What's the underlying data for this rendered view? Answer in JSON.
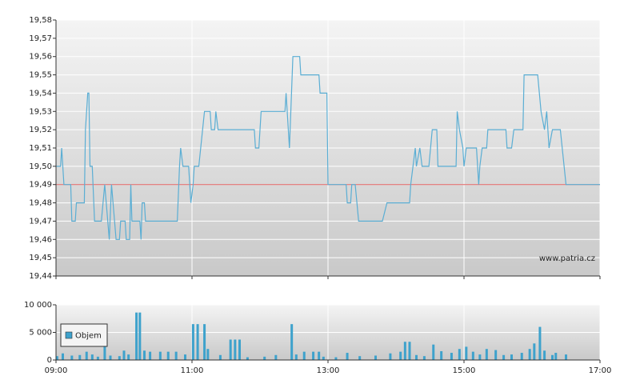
{
  "chart_data": [
    {
      "type": "line",
      "color": "#5aaed4",
      "reference_line": 19.49,
      "reference_color": "#e06060",
      "annotation": "www.patria.cz",
      "grid": true,
      "xlim": [
        540,
        1020
      ],
      "xticks": [
        540,
        660,
        780,
        900,
        1020
      ],
      "ylim": [
        19.44,
        19.58
      ],
      "yticks": [
        {
          "value": 19.44,
          "label": "19,44"
        },
        {
          "value": 19.45,
          "label": "19,45"
        },
        {
          "value": 19.46,
          "label": "19,46"
        },
        {
          "value": 19.47,
          "label": "19,47"
        },
        {
          "value": 19.48,
          "label": "19,48"
        },
        {
          "value": 19.49,
          "label": "19,49"
        },
        {
          "value": 19.5,
          "label": "19,50"
        },
        {
          "value": 19.51,
          "label": "19,51"
        },
        {
          "value": 19.52,
          "label": "19,52"
        },
        {
          "value": 19.53,
          "label": "19,53"
        },
        {
          "value": 19.54,
          "label": "19,54"
        },
        {
          "value": 19.55,
          "label": "19,55"
        },
        {
          "value": 19.56,
          "label": "19,56"
        },
        {
          "value": 19.57,
          "label": "19,57"
        },
        {
          "value": 19.58,
          "label": "19,58"
        }
      ],
      "x": [
        540,
        544,
        545,
        547,
        553,
        554,
        557,
        558,
        565,
        566,
        568,
        569,
        570,
        572,
        574,
        580,
        583,
        587,
        589,
        593,
        596,
        597,
        601,
        602,
        605,
        606,
        607,
        614,
        615,
        616,
        618,
        619,
        647,
        649,
        650,
        652,
        657,
        659,
        661,
        662,
        666,
        671,
        676,
        677,
        680,
        681,
        683,
        715,
        716,
        719,
        721,
        742,
        743,
        746,
        749,
        755,
        756,
        772,
        773,
        779,
        780,
        796,
        797,
        800,
        801,
        804,
        807,
        828,
        832,
        852,
        853,
        857,
        858,
        861,
        863,
        869,
        872,
        876,
        877,
        893,
        894,
        896,
        899,
        900,
        902,
        911,
        913,
        914,
        916,
        920,
        921,
        937,
        938,
        942,
        944,
        952,
        953,
        965,
        968,
        971,
        973,
        975,
        978,
        985,
        990,
        1020
      ],
      "values": [
        19.5,
        19.5,
        19.51,
        19.49,
        19.49,
        19.47,
        19.47,
        19.48,
        19.48,
        19.52,
        19.54,
        19.54,
        19.5,
        19.5,
        19.47,
        19.47,
        19.49,
        19.46,
        19.49,
        19.46,
        19.46,
        19.47,
        19.47,
        19.46,
        19.46,
        19.49,
        19.47,
        19.47,
        19.46,
        19.48,
        19.48,
        19.47,
        19.47,
        19.5,
        19.51,
        19.5,
        19.5,
        19.48,
        19.49,
        19.5,
        19.5,
        19.53,
        19.53,
        19.52,
        19.52,
        19.53,
        19.52,
        19.52,
        19.51,
        19.51,
        19.53,
        19.53,
        19.54,
        19.51,
        19.56,
        19.56,
        19.55,
        19.55,
        19.54,
        19.54,
        19.49,
        19.49,
        19.48,
        19.48,
        19.49,
        19.49,
        19.47,
        19.47,
        19.48,
        19.48,
        19.49,
        19.51,
        19.5,
        19.51,
        19.5,
        19.5,
        19.52,
        19.52,
        19.5,
        19.5,
        19.53,
        19.52,
        19.51,
        19.5,
        19.51,
        19.51,
        19.49,
        19.5,
        19.51,
        19.51,
        19.52,
        19.52,
        19.51,
        19.51,
        19.52,
        19.52,
        19.55,
        19.55,
        19.53,
        19.52,
        19.53,
        19.51,
        19.52,
        19.52,
        19.49,
        19.49
      ]
    },
    {
      "type": "bar",
      "grid": true,
      "xlim": [
        540,
        1020
      ],
      "xticks": [
        {
          "value": 540,
          "label": "09:00"
        },
        {
          "value": 660,
          "label": "11:00"
        },
        {
          "value": 780,
          "label": "13:00"
        },
        {
          "value": 900,
          "label": "15:00"
        },
        {
          "value": 1020,
          "label": "17:00"
        }
      ],
      "ylim": [
        0,
        10000
      ],
      "yticks": [
        0,
        {
          "value": 5000,
          "label": "5 000"
        },
        {
          "value": 10000,
          "label": "10 000"
        }
      ],
      "legend": "lower-left",
      "x": [
        541,
        546,
        554,
        561,
        567,
        572,
        577,
        583,
        588,
        596,
        600,
        604,
        611,
        614,
        618,
        623,
        632,
        639,
        646,
        654,
        661,
        665,
        671,
        674,
        685,
        694,
        698,
        702,
        709,
        724,
        734,
        748,
        752,
        759,
        767,
        772,
        776,
        787,
        797,
        808,
        822,
        835,
        844,
        848,
        852,
        858,
        865,
        873,
        880,
        889,
        896,
        902,
        908,
        914,
        920,
        928,
        935,
        942,
        951,
        958,
        962,
        967,
        971,
        978,
        981,
        990
      ],
      "series": [
        {
          "name": "Objem",
          "color": "#3ea2cc",
          "values": [
            700,
            1200,
            800,
            900,
            1500,
            1000,
            600,
            5100,
            800,
            700,
            1700,
            1000,
            8600,
            8600,
            1700,
            1500,
            1500,
            1500,
            1500,
            1000,
            6500,
            6500,
            6500,
            2000,
            900,
            3700,
            3700,
            3700,
            500,
            600,
            900,
            6500,
            1000,
            1500,
            1500,
            1500,
            600,
            500,
            1300,
            700,
            800,
            1200,
            1500,
            3300,
            3300,
            900,
            700,
            2800,
            1600,
            1300,
            2000,
            2400,
            1500,
            1000,
            2000,
            1800,
            900,
            1000,
            1300,
            2000,
            3000,
            6000,
            1700,
            900,
            1300,
            1000
          ]
        }
      ]
    }
  ]
}
